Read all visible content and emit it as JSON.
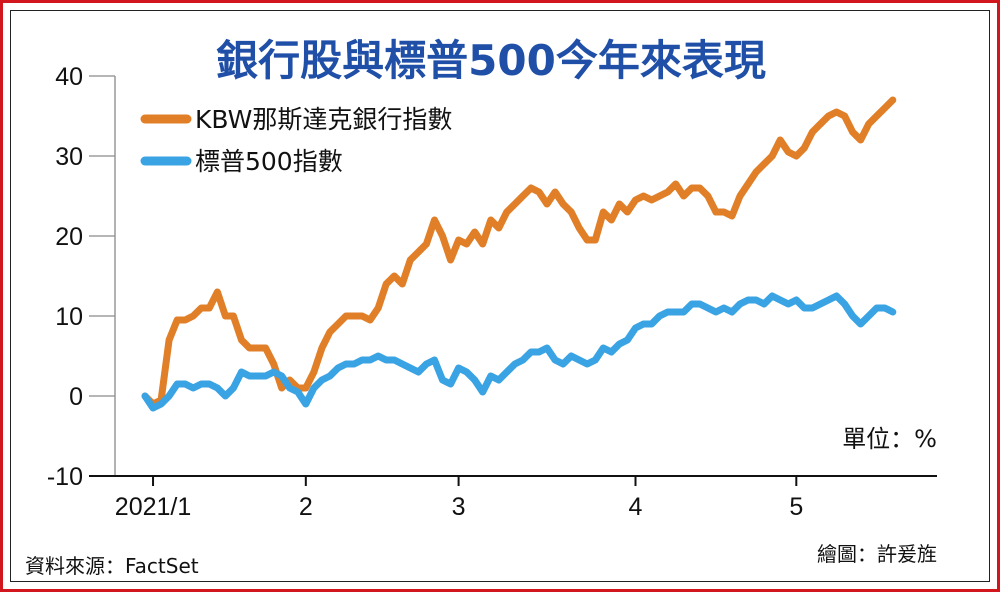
{
  "chart_data": {
    "type": "line",
    "title": "銀行股與標普500今年來表現",
    "unit_label": "單位：%",
    "ylim": [
      -10,
      40
    ],
    "yticks": [
      40,
      30,
      20,
      10,
      0,
      -10
    ],
    "x_range": [
      0,
      98
    ],
    "xticks": [
      {
        "label": "2021/1",
        "x": 1
      },
      {
        "label": "2",
        "x": 20
      },
      {
        "label": "3",
        "x": 39
      },
      {
        "label": "4",
        "x": 61
      },
      {
        "label": "5",
        "x": 81
      }
    ],
    "grid": true,
    "legend_position": "top-left",
    "series": [
      {
        "name": "KBW那斯達克銀行指數",
        "color": "#e07f27",
        "points": [
          [
            0,
            0
          ],
          [
            1,
            -1
          ],
          [
            2,
            -0.5
          ],
          [
            3,
            7
          ],
          [
            4,
            9.5
          ],
          [
            5,
            9.5
          ],
          [
            6,
            10
          ],
          [
            7,
            11
          ],
          [
            8,
            11
          ],
          [
            9,
            13
          ],
          [
            10,
            10
          ],
          [
            11,
            10
          ],
          [
            12,
            7
          ],
          [
            13,
            6
          ],
          [
            14,
            6
          ],
          [
            15,
            6
          ],
          [
            16,
            4
          ],
          [
            17,
            1
          ],
          [
            18,
            2
          ],
          [
            19,
            1
          ],
          [
            20,
            1
          ],
          [
            21,
            3
          ],
          [
            22,
            6
          ],
          [
            23,
            8
          ],
          [
            24,
            9
          ],
          [
            25,
            10
          ],
          [
            26,
            10
          ],
          [
            27,
            10
          ],
          [
            28,
            9.5
          ],
          [
            29,
            11
          ],
          [
            30,
            14
          ],
          [
            31,
            15
          ],
          [
            32,
            14
          ],
          [
            33,
            17
          ],
          [
            34,
            18
          ],
          [
            35,
            19
          ],
          [
            36,
            22
          ],
          [
            37,
            20
          ],
          [
            38,
            17
          ],
          [
            39,
            19.5
          ],
          [
            40,
            19
          ],
          [
            41,
            20.5
          ],
          [
            42,
            19
          ],
          [
            43,
            22
          ],
          [
            44,
            21
          ],
          [
            45,
            23
          ],
          [
            46,
            24
          ],
          [
            47,
            25
          ],
          [
            48,
            26
          ],
          [
            49,
            25.5
          ],
          [
            50,
            24
          ],
          [
            51,
            25.5
          ],
          [
            52,
            24
          ],
          [
            53,
            23
          ],
          [
            54,
            21
          ],
          [
            55,
            19.5
          ],
          [
            56,
            19.5
          ],
          [
            57,
            23
          ],
          [
            58,
            22
          ],
          [
            59,
            24
          ],
          [
            60,
            23
          ],
          [
            61,
            24.5
          ],
          [
            62,
            25
          ],
          [
            63,
            24.5
          ],
          [
            64,
            25
          ],
          [
            65,
            25.5
          ],
          [
            66,
            26.5
          ],
          [
            67,
            25
          ],
          [
            68,
            26
          ],
          [
            69,
            26
          ],
          [
            70,
            25
          ],
          [
            71,
            23
          ],
          [
            72,
            23
          ],
          [
            73,
            22.5
          ],
          [
            74,
            25
          ],
          [
            75,
            26.5
          ],
          [
            76,
            28
          ],
          [
            77,
            29
          ],
          [
            78,
            30
          ],
          [
            79,
            32
          ],
          [
            80,
            30.5
          ],
          [
            81,
            30
          ],
          [
            82,
            31
          ],
          [
            83,
            33
          ],
          [
            84,
            34
          ],
          [
            85,
            35
          ],
          [
            86,
            35.5
          ],
          [
            87,
            35
          ],
          [
            88,
            33
          ],
          [
            89,
            32
          ],
          [
            90,
            34
          ],
          [
            91,
            35
          ],
          [
            92,
            36
          ],
          [
            93,
            37
          ]
        ]
      },
      {
        "name": "標普500指數",
        "color": "#3aa3e3",
        "points": [
          [
            0,
            0
          ],
          [
            1,
            -1.5
          ],
          [
            2,
            -1
          ],
          [
            3,
            0
          ],
          [
            4,
            1.5
          ],
          [
            5,
            1.5
          ],
          [
            6,
            1
          ],
          [
            7,
            1.5
          ],
          [
            8,
            1.5
          ],
          [
            9,
            1
          ],
          [
            10,
            0
          ],
          [
            11,
            1
          ],
          [
            12,
            3
          ],
          [
            13,
            2.5
          ],
          [
            14,
            2.5
          ],
          [
            15,
            2.5
          ],
          [
            16,
            3
          ],
          [
            17,
            2.5
          ],
          [
            18,
            1
          ],
          [
            19,
            0.5
          ],
          [
            20,
            -1
          ],
          [
            21,
            1
          ],
          [
            22,
            2
          ],
          [
            23,
            2.5
          ],
          [
            24,
            3.5
          ],
          [
            25,
            4
          ],
          [
            26,
            4
          ],
          [
            27,
            4.5
          ],
          [
            28,
            4.5
          ],
          [
            29,
            5
          ],
          [
            30,
            4.5
          ],
          [
            31,
            4.5
          ],
          [
            32,
            4
          ],
          [
            33,
            3.5
          ],
          [
            34,
            3
          ],
          [
            35,
            4
          ],
          [
            36,
            4.5
          ],
          [
            37,
            2
          ],
          [
            38,
            1.5
          ],
          [
            39,
            3.5
          ],
          [
            40,
            3
          ],
          [
            41,
            2
          ],
          [
            42,
            0.5
          ],
          [
            43,
            2.5
          ],
          [
            44,
            2
          ],
          [
            45,
            3
          ],
          [
            46,
            4
          ],
          [
            47,
            4.5
          ],
          [
            48,
            5.5
          ],
          [
            49,
            5.5
          ],
          [
            50,
            6
          ],
          [
            51,
            4.5
          ],
          [
            52,
            4
          ],
          [
            53,
            5
          ],
          [
            54,
            4.5
          ],
          [
            55,
            4
          ],
          [
            56,
            4.5
          ],
          [
            57,
            6
          ],
          [
            58,
            5.5
          ],
          [
            59,
            6.5
          ],
          [
            60,
            7
          ],
          [
            61,
            8.5
          ],
          [
            62,
            9
          ],
          [
            63,
            9
          ],
          [
            64,
            10
          ],
          [
            65,
            10.5
          ],
          [
            66,
            10.5
          ],
          [
            67,
            10.5
          ],
          [
            68,
            11.5
          ],
          [
            69,
            11.5
          ],
          [
            70,
            11
          ],
          [
            71,
            10.5
          ],
          [
            72,
            11
          ],
          [
            73,
            10.5
          ],
          [
            74,
            11.5
          ],
          [
            75,
            12
          ],
          [
            76,
            12
          ],
          [
            77,
            11.5
          ],
          [
            78,
            12.5
          ],
          [
            79,
            12
          ],
          [
            80,
            11.5
          ],
          [
            81,
            12
          ],
          [
            82,
            11
          ],
          [
            83,
            11
          ],
          [
            84,
            11.5
          ],
          [
            85,
            12
          ],
          [
            86,
            12.5
          ],
          [
            87,
            11.5
          ],
          [
            88,
            10
          ],
          [
            89,
            9
          ],
          [
            90,
            10
          ],
          [
            91,
            11
          ],
          [
            92,
            11
          ],
          [
            93,
            10.5
          ]
        ]
      }
    ]
  },
  "footer": {
    "source": "資料來源：FactSet",
    "credit": "繪圖：許爰旌"
  }
}
